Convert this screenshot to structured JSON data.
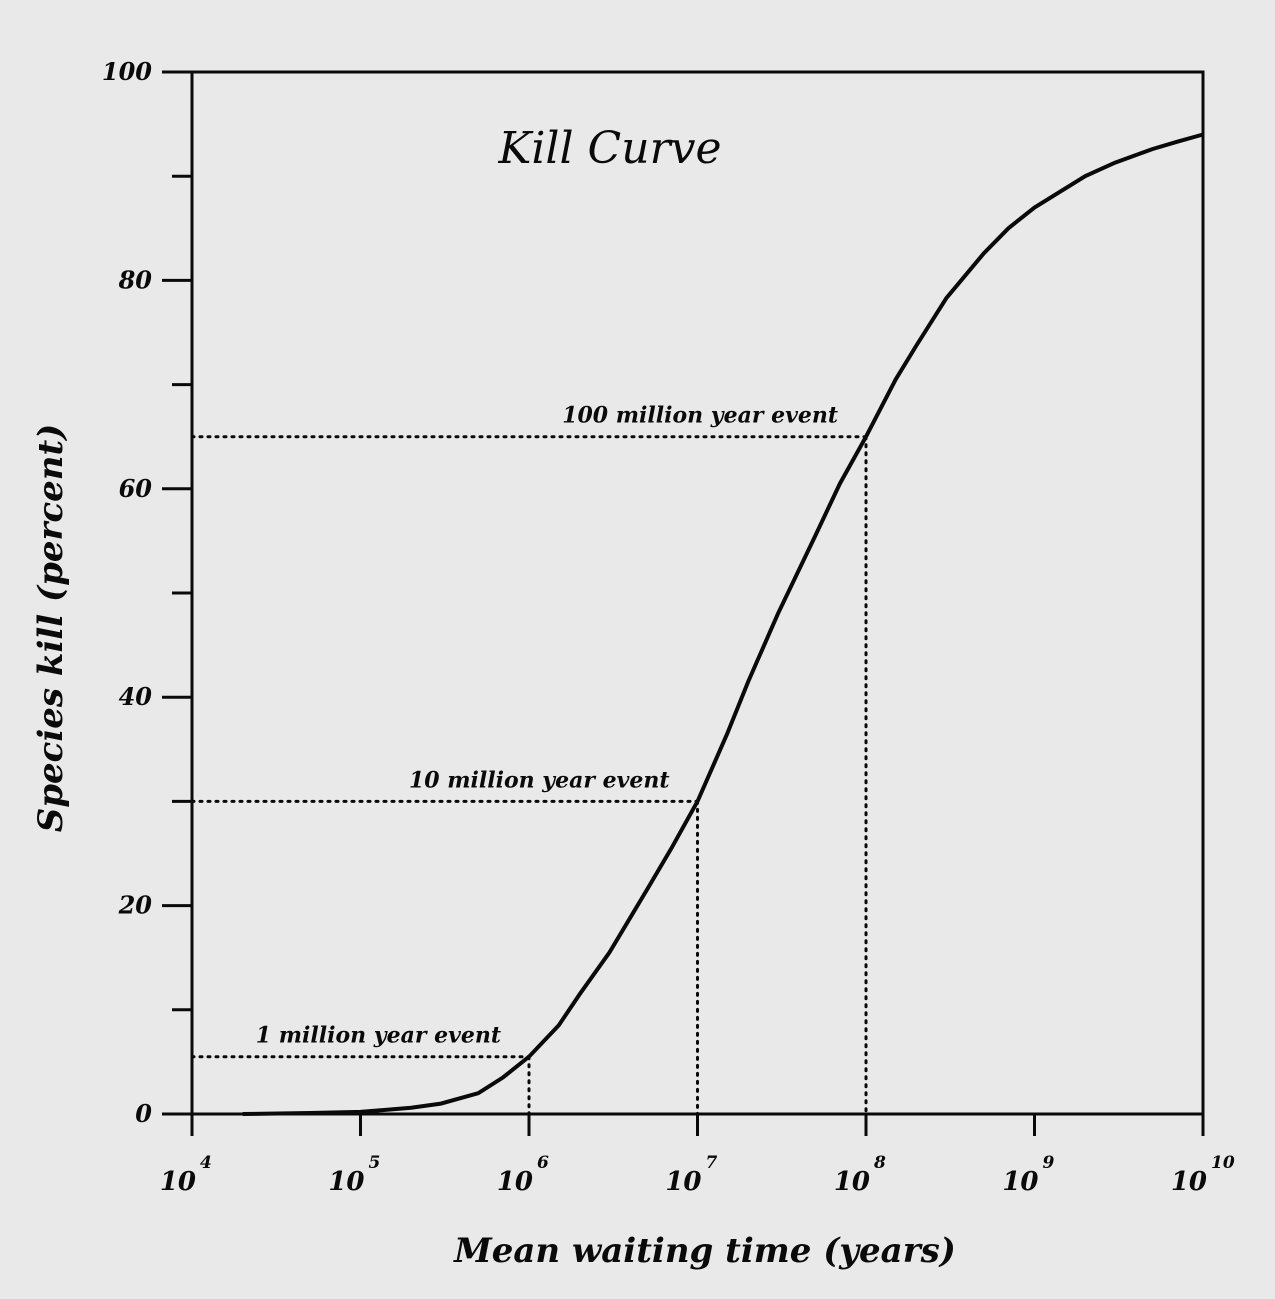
{
  "chart_data": {
    "type": "line",
    "title": "Kill Curve",
    "xlabel": "Mean waiting time (years)",
    "ylabel": "Species kill (percent)",
    "x_scale": "log",
    "xlim": [
      10000,
      10000000000
    ],
    "ylim": [
      0,
      100
    ],
    "x_ticks": [
      {
        "value": 10000,
        "base": "10",
        "exp": "4"
      },
      {
        "value": 100000,
        "base": "10",
        "exp": "5"
      },
      {
        "value": 1000000,
        "base": "10",
        "exp": "6"
      },
      {
        "value": 10000000,
        "base": "10",
        "exp": "7"
      },
      {
        "value": 100000000,
        "base": "10",
        "exp": "8"
      },
      {
        "value": 1000000000,
        "base": "10",
        "exp": "9"
      },
      {
        "value": 10000000000,
        "base": "10",
        "exp": "10"
      }
    ],
    "y_major_ticks": [
      0,
      20,
      40,
      60,
      80,
      100
    ],
    "y_minor_ticks": [
      10,
      30,
      50,
      70,
      90
    ],
    "y_tick_labels": [
      "0",
      "20",
      "40",
      "60",
      "80",
      "100"
    ],
    "grid": false,
    "series": [
      {
        "x": [
          20000,
          50000,
          100000,
          200000,
          300000,
          500000,
          700000,
          1000000,
          1500000,
          2000000,
          3000000,
          5000000,
          7000000,
          10000000,
          15000000,
          20000000,
          30000000,
          50000000,
          70000000,
          100000000,
          150000000,
          200000000,
          300000000,
          500000000,
          700000000,
          1000000000,
          2000000000,
          3000000000,
          5000000000,
          7000000000,
          10000000000
        ],
        "y": [
          0,
          0.1,
          0.2,
          0.6,
          1.0,
          2.0,
          3.5,
          5.5,
          8.5,
          11.5,
          15.5,
          21.5,
          25.5,
          30.0,
          36.5,
          41.5,
          48.0,
          55.5,
          60.5,
          65.0,
          70.5,
          73.8,
          78.3,
          82.6,
          85.0,
          87.0,
          90.0,
          91.3,
          92.6,
          93.3,
          94.0
        ]
      }
    ],
    "annotations": [
      {
        "text": "1 million year event",
        "x": 1000000,
        "y": 5.5
      },
      {
        "text": "10 million year event",
        "x": 10000000,
        "y": 30
      },
      {
        "text": "100 million year event",
        "x": 100000000,
        "y": 65
      }
    ]
  }
}
